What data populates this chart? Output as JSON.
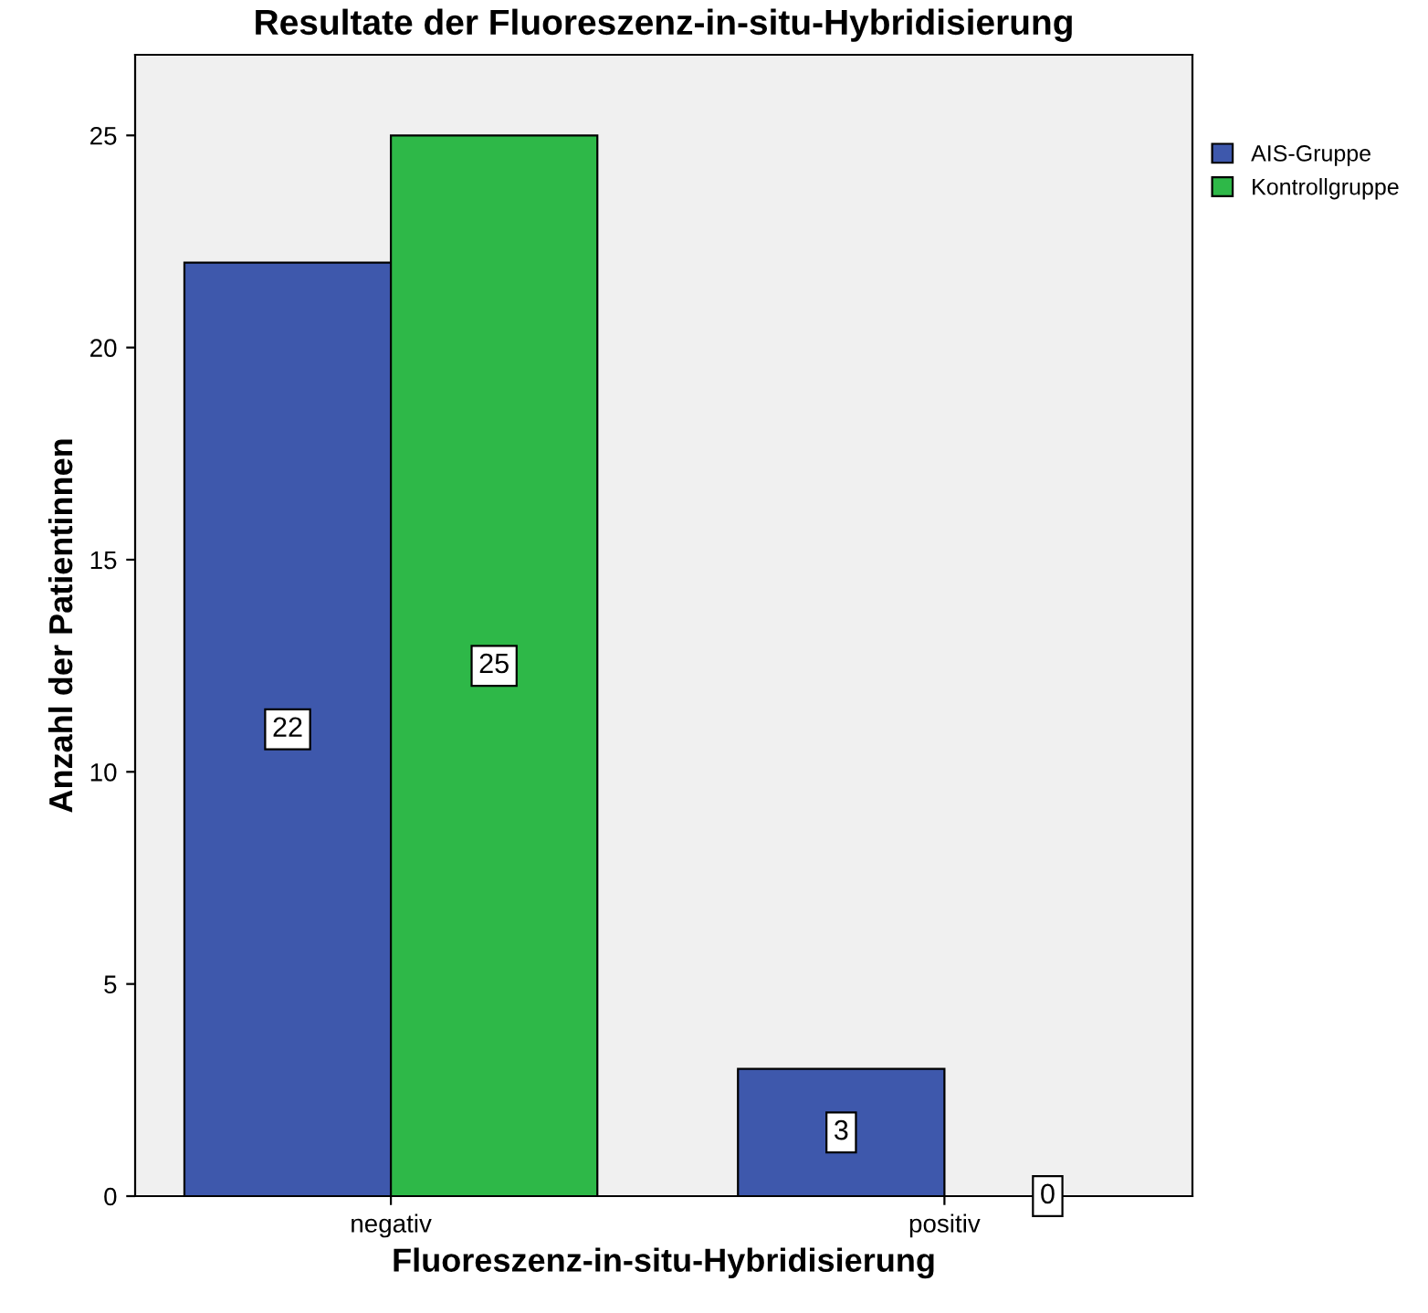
{
  "chart_data": {
    "type": "bar",
    "title": "Resultate der Fluoreszenz-in-situ-Hybridisierung",
    "xlabel": "Fluoreszenz-in-situ-Hybridisierung",
    "ylabel": "Anzahl der Patientinnen",
    "categories": [
      "negativ",
      "positiv"
    ],
    "series": [
      {
        "name": "AIS-Gruppe",
        "color": "#3e58ac",
        "values": [
          22,
          3
        ]
      },
      {
        "name": "Kontrollgruppe",
        "color": "#2eb848",
        "values": [
          25,
          0
        ]
      }
    ],
    "ylim": [
      0,
      26.9
    ],
    "yticks": [
      0,
      5,
      10,
      15,
      20,
      25
    ],
    "grid": false,
    "legend": "top right",
    "data_labels": true
  }
}
